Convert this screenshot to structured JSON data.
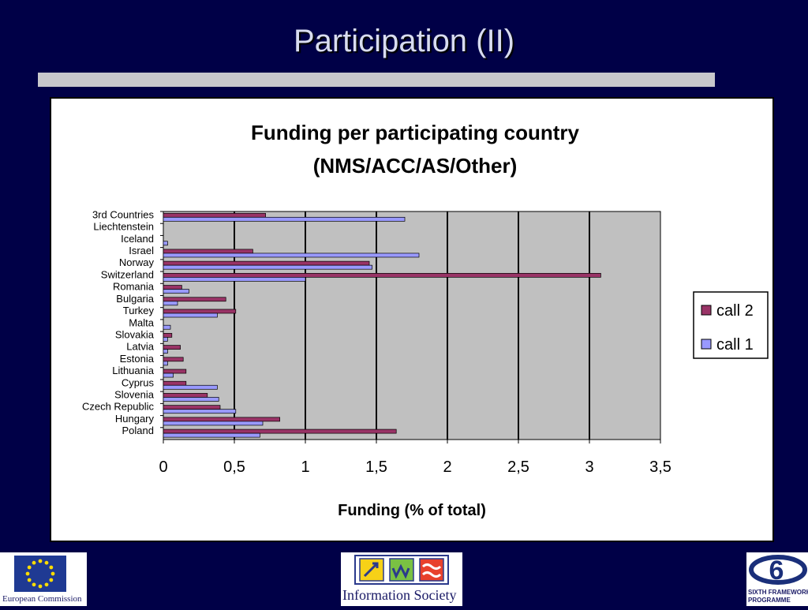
{
  "slide": {
    "title": "Participation (II)"
  },
  "chart_data": {
    "type": "bar",
    "orientation": "horizontal",
    "title": "Funding per participating country",
    "subtitle": "(NMS/ACC/AS/Other)",
    "xlabel": "Funding (% of total)",
    "ylabel": "",
    "xlim": [
      0,
      3.5
    ],
    "xticks": [
      "0",
      "0,5",
      "1",
      "1,5",
      "2",
      "2,5",
      "3",
      "3,5"
    ],
    "grid": "vertical",
    "legend_position": "right",
    "categories": [
      "3rd Countries",
      "Liechtenstein",
      "Iceland",
      "Israel",
      "Norway",
      "Switzerland",
      "Romania",
      "Bulgaria",
      "Turkey",
      "Malta",
      "Slovakia",
      "Latvia",
      "Estonia",
      "Lithuania",
      "Cyprus",
      "Slovenia",
      "Czech Republic",
      "Hungary",
      "Poland"
    ],
    "series": [
      {
        "name": "call 2",
        "color": "#993366",
        "values": [
          0.72,
          0,
          0,
          0.63,
          1.45,
          3.08,
          0.13,
          0.44,
          0.51,
          0,
          0.06,
          0.12,
          0.14,
          0.16,
          0.16,
          0.31,
          0.4,
          0.82,
          1.64
        ]
      },
      {
        "name": "call 1",
        "color": "#9999ff",
        "values": [
          1.7,
          0,
          0.03,
          1.8,
          1.47,
          1.0,
          0.18,
          0.1,
          0.38,
          0.05,
          0.03,
          0.03,
          0.03,
          0.07,
          0.38,
          0.39,
          0.51,
          0.7,
          0.68
        ]
      }
    ]
  },
  "footer": {
    "left_caption": "European Commission",
    "mid_caption": "Information Society",
    "right_caption_line1": "SIXTH FRAMEWORK",
    "right_caption_line2": "PROGRAMME",
    "right_logo_number": "6"
  }
}
